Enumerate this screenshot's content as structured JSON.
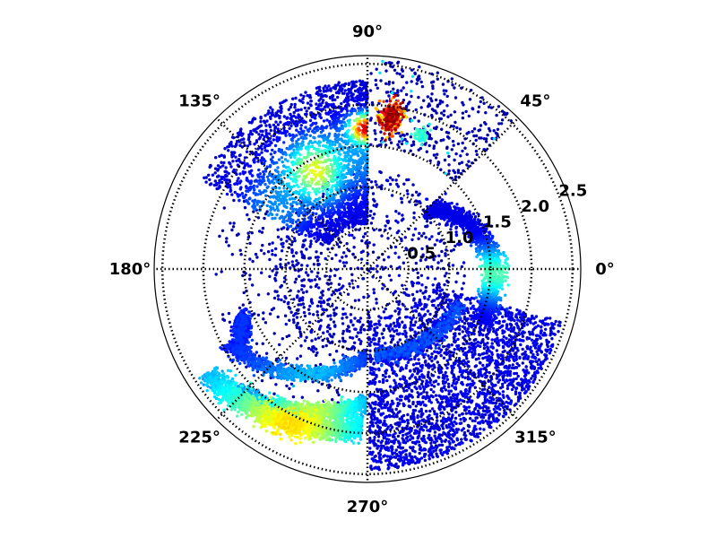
{
  "chart_data": {
    "type": "scatter",
    "projection": "polar",
    "title": "",
    "grid": true,
    "grid_style": "dotted",
    "colormap": "jet",
    "point_color_meaning": "local point density (blue = sparse, red = dense)",
    "rlim": [
      0,
      2.6
    ],
    "angular_ticks_deg": [
      0,
      45,
      90,
      135,
      180,
      225,
      270,
      315
    ],
    "angular_tick_labels": [
      "0°",
      "45°",
      "90°",
      "135°",
      "180°",
      "225°",
      "270°",
      "315°"
    ],
    "radial_ticks": [
      0.5,
      1.0,
      1.5,
      2.0,
      2.5
    ],
    "radial_tick_labels": [
      "0.5",
      "1.0",
      "1.5",
      "2.0",
      "2.5"
    ],
    "radial_label_angle_deg": 22.5,
    "colors": {
      "sparse": "#0000b4",
      "medium": "#00c8ff",
      "dense": "#ffd200",
      "peak": "#d20000"
    },
    "clusters": [
      {
        "name": "upper-left fan",
        "theta_range_deg": [
          90,
          150
        ],
        "r_range": [
          0.5,
          2.3
        ],
        "density": "high near theta 90 deg, r 1.5-1.9"
      },
      {
        "name": "upper-right hot spot",
        "theta_deg": 82,
        "r": 1.85,
        "density": "peak"
      },
      {
        "name": "right arc",
        "theta_range_deg": [
          -20,
          45
        ],
        "r_range": [
          0.7,
          1.6
        ],
        "density": "medium"
      },
      {
        "name": "lower-right sector",
        "theta_range_deg": [
          270,
          345
        ],
        "r_range": [
          0.5,
          2.45
        ],
        "density": "sparse"
      },
      {
        "name": "lower-left bands",
        "theta_range_deg": [
          200,
          270
        ],
        "r_range": [
          0.9,
          2.3
        ],
        "density": "medium-high"
      },
      {
        "name": "inner scatter",
        "theta_range_deg": [
          0,
          360
        ],
        "r_range": [
          0,
          1.0
        ],
        "density": "sparse"
      }
    ]
  }
}
